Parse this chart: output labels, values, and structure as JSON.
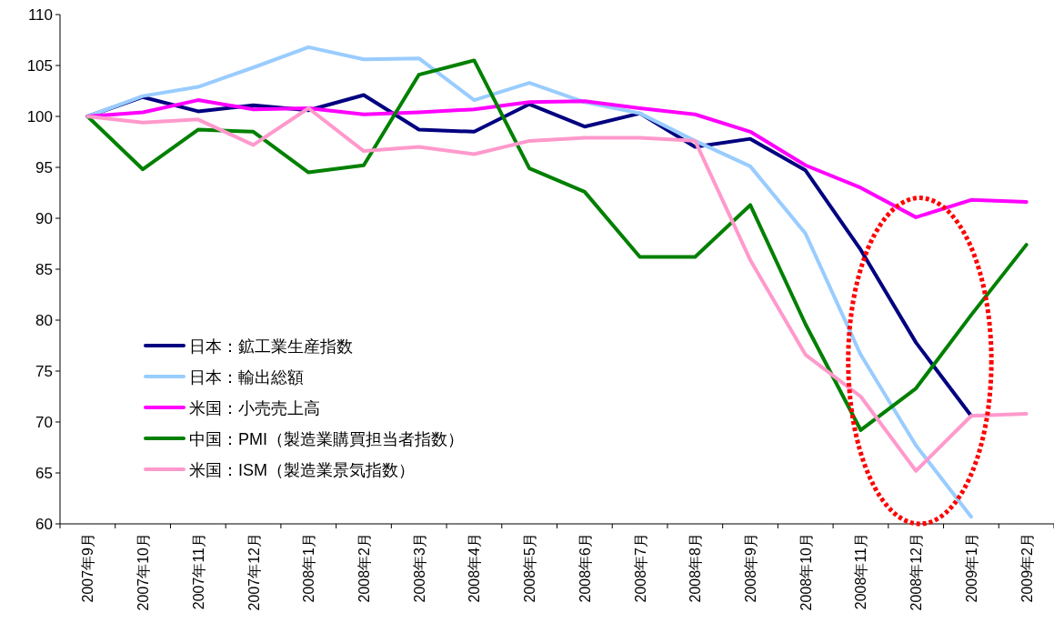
{
  "chart_data": {
    "type": "line",
    "categories": [
      "2007年9月",
      "2007年10月",
      "2007年11月",
      "2007年12月",
      "2008年1月",
      "2008年2月",
      "2008年3月",
      "2008年4月",
      "2008年5月",
      "2008年6月",
      "2008年7月",
      "2008年8月",
      "2008年9月",
      "2008年10月",
      "2008年11月",
      "2008年12月",
      "2009年1月",
      "2009年2月"
    ],
    "ylim": [
      60,
      110
    ],
    "yticks": [
      60,
      65,
      70,
      75,
      80,
      85,
      90,
      95,
      100,
      105,
      110
    ],
    "grid": false,
    "legend": "left",
    "series": [
      {
        "name": "日本：鉱工業生産指数",
        "color": "#000080",
        "values": [
          100,
          101.9,
          100.5,
          101.1,
          100.6,
          102.1,
          98.7,
          98.5,
          101.2,
          99.0,
          100.3,
          97.0,
          97.8,
          94.7,
          86.9,
          77.8,
          70.6,
          null
        ]
      },
      {
        "name": "日本：輸出総額",
        "color": "#99ccff",
        "values": [
          100,
          102.0,
          102.9,
          104.8,
          106.8,
          105.6,
          105.7,
          101.6,
          103.3,
          101.4,
          100.3,
          97.6,
          95.1,
          88.5,
          76.6,
          67.7,
          60.7,
          null
        ]
      },
      {
        "name": "米国：小売売上高",
        "color": "#ff00ff",
        "values": [
          100,
          100.4,
          101.6,
          100.7,
          100.8,
          100.2,
          100.4,
          100.7,
          101.4,
          101.5,
          100.8,
          100.2,
          98.5,
          95.2,
          93.0,
          90.1,
          91.8,
          91.6
        ]
      },
      {
        "name": "中国：PMI（製造業購買担当者指数）",
        "color": "#008000",
        "values": [
          100,
          94.8,
          98.7,
          98.5,
          94.5,
          95.2,
          104.1,
          105.5,
          94.9,
          92.6,
          86.2,
          86.2,
          91.3,
          79.6,
          69.2,
          73.3,
          80.5,
          87.4
        ]
      },
      {
        "name": "米国：ISM（製造業景気指数）",
        "color": "#ff99cc",
        "values": [
          100,
          99.4,
          99.7,
          97.2,
          100.8,
          96.6,
          97.0,
          96.3,
          97.6,
          97.9,
          97.9,
          97.6,
          85.9,
          76.6,
          72.5,
          65.2,
          70.6,
          70.8
        ]
      }
    ]
  }
}
